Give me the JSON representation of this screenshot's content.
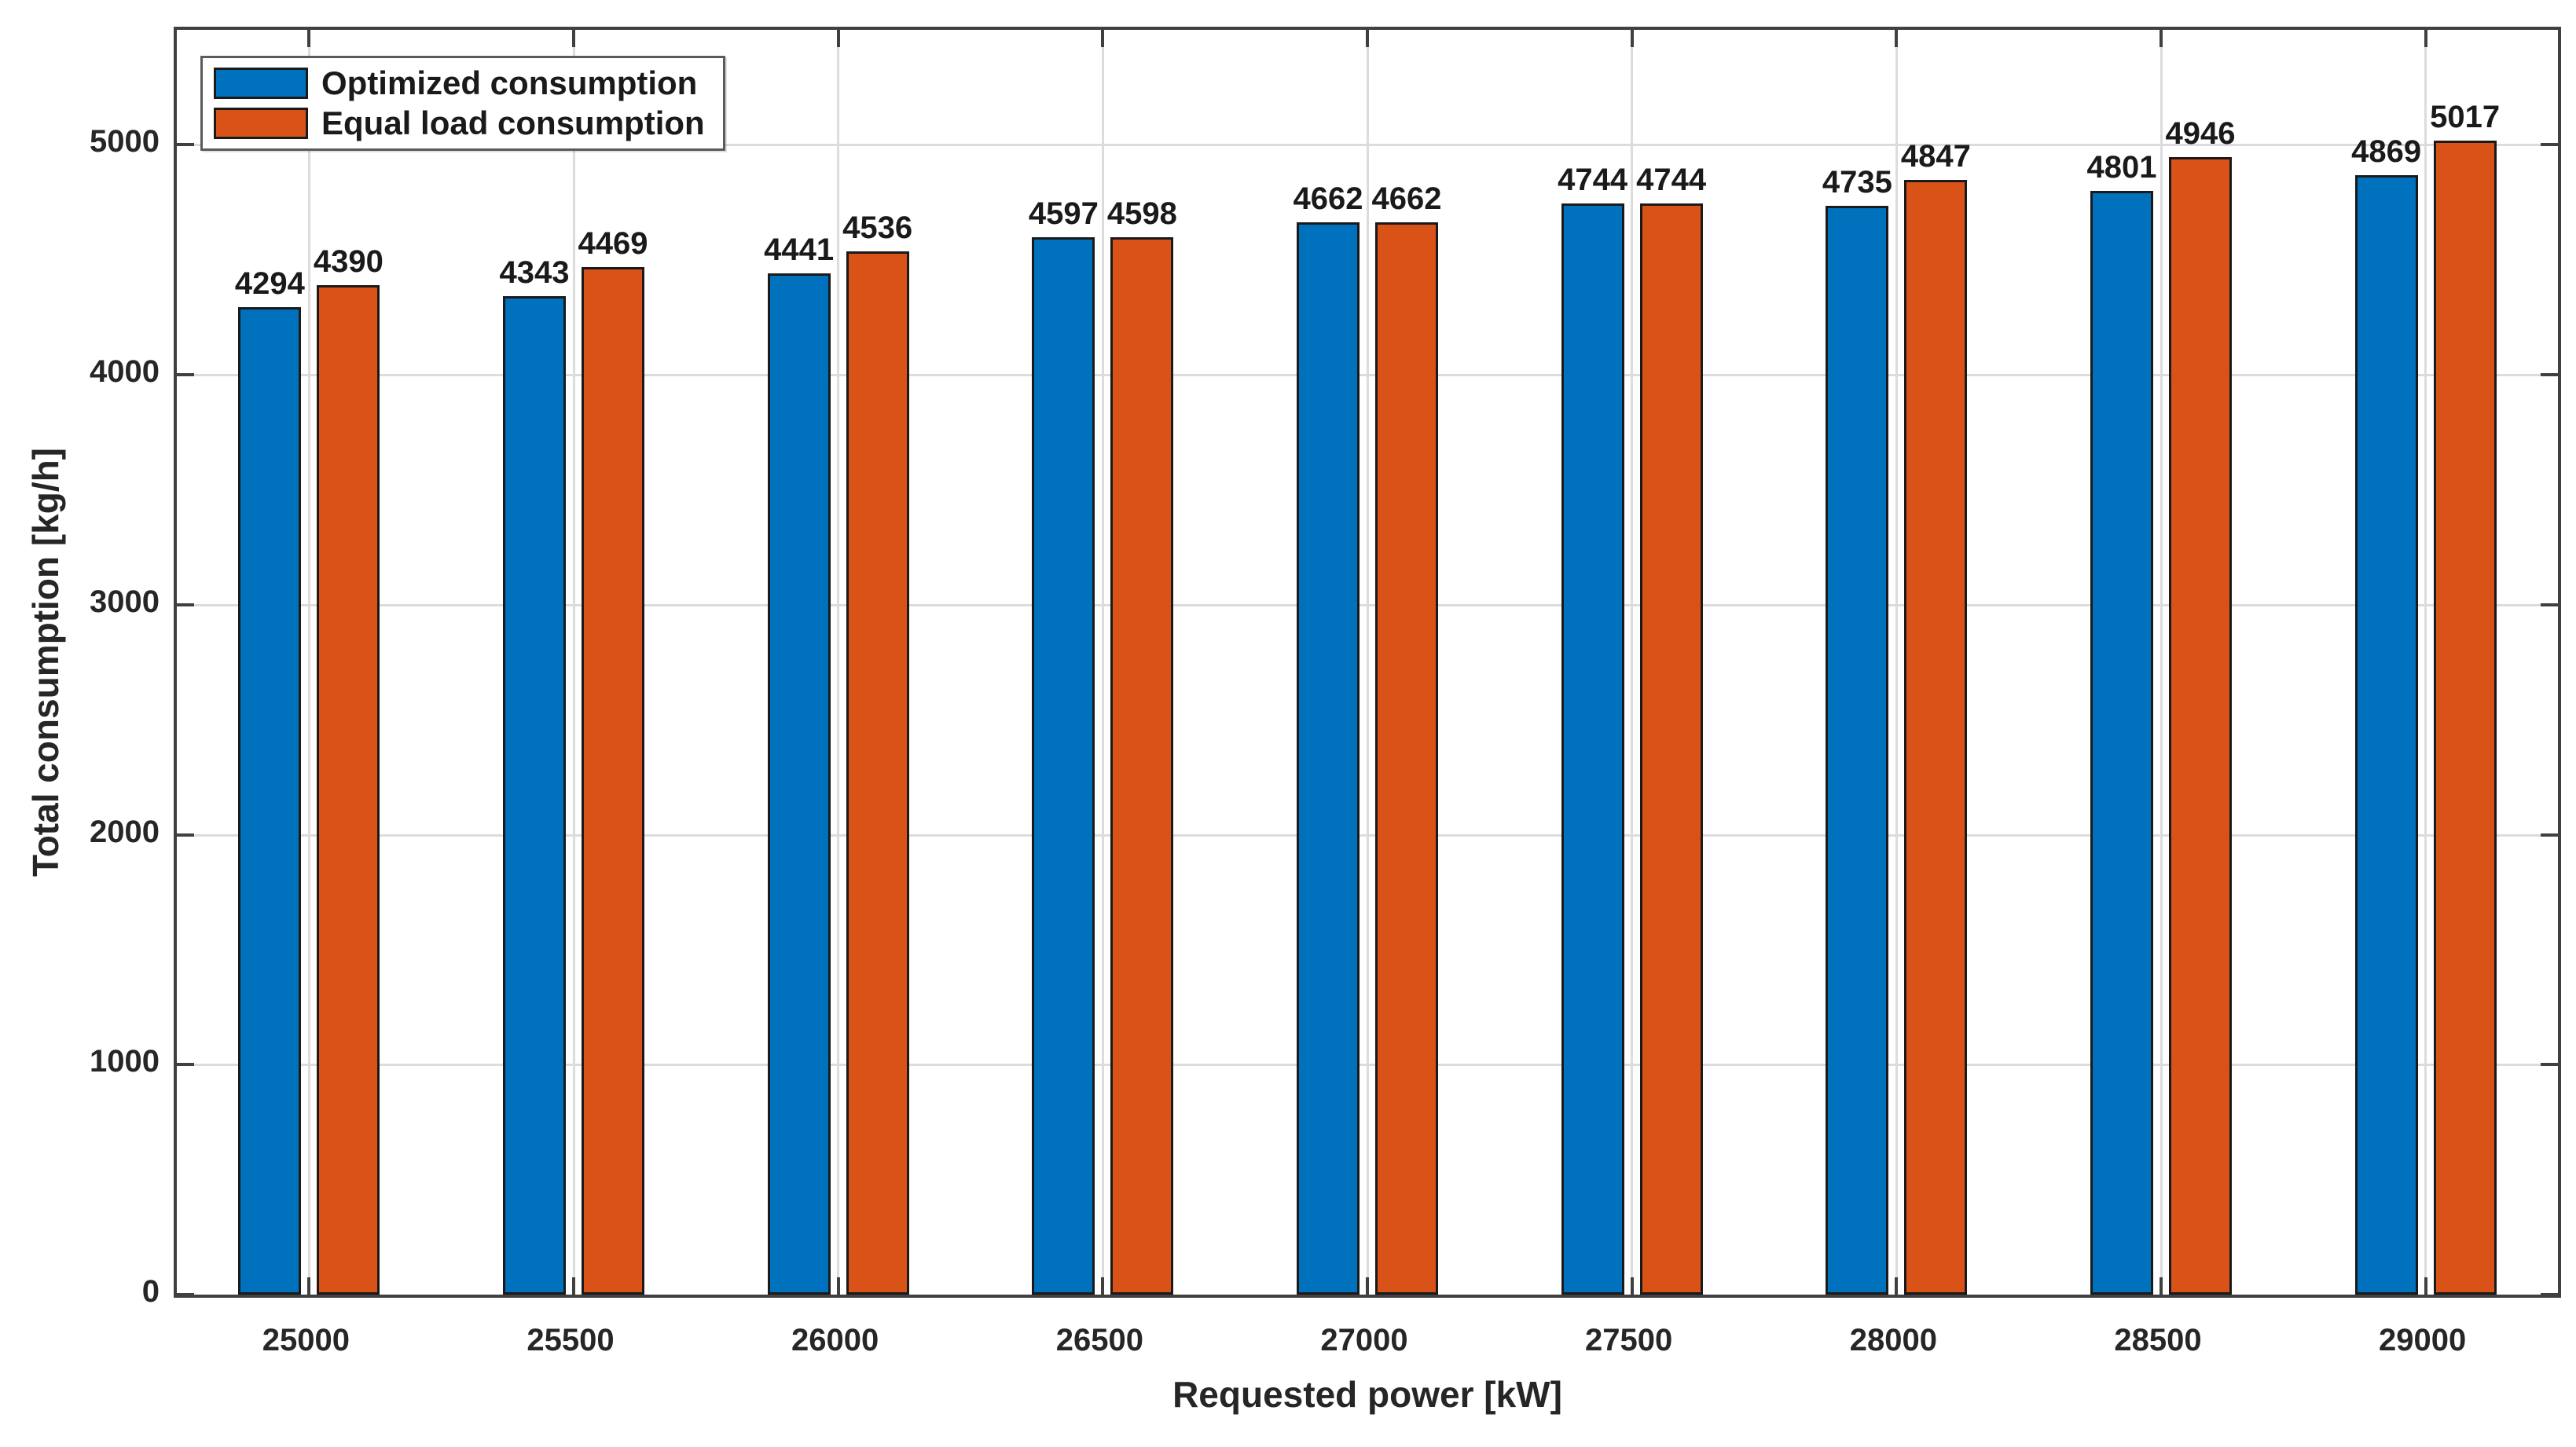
{
  "window": {
    "background": "#ffffff"
  },
  "colors": {
    "axis_border": "#404040",
    "gridline": "#dcdcdc",
    "text": "#262626",
    "bar_edge": "#1a1a1a",
    "legend_border": "#5a5a5a",
    "legend_background": "#ffffff",
    "series_blue": "#0072BD",
    "series_orange": "#D95319"
  },
  "chart_data": {
    "type": "bar",
    "title": "",
    "xlabel": "Requested power [kW]",
    "ylabel": "Total consumption [kg/h]",
    "categories": [
      "25000",
      "25500",
      "26000",
      "26500",
      "27000",
      "27500",
      "28000",
      "28500",
      "29000"
    ],
    "series": [
      {
        "name": "Optimized consumption",
        "color": "#0072BD",
        "values": [
          4294,
          4343,
          4441,
          4597,
          4662,
          4744,
          4735,
          4801,
          4869
        ]
      },
      {
        "name": "Equal load consumption",
        "color": "#D95319",
        "values": [
          4390,
          4469,
          4536,
          4598,
          4662,
          4744,
          4847,
          4946,
          5017
        ]
      }
    ],
    "yticks": [
      0,
      1000,
      2000,
      3000,
      4000,
      5000
    ],
    "ylim": [
      0,
      5500
    ],
    "grid": true,
    "grid_orientation": "both",
    "legend_position": "top-left",
    "data_labels": true
  }
}
